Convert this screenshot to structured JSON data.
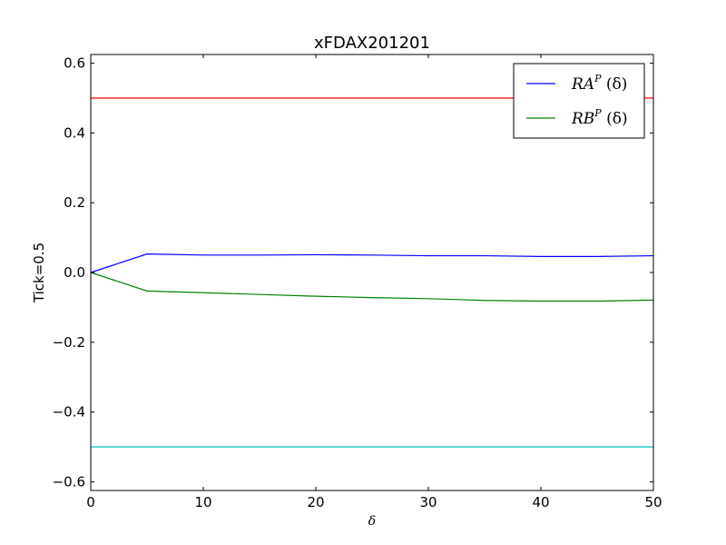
{
  "chart_data": {
    "type": "line",
    "title": "xFDAX201201",
    "xlabel": "δ",
    "ylabel": "Tick=0.5",
    "xlim": [
      0,
      50
    ],
    "ylim": [
      -0.625,
      0.625
    ],
    "xticks": [
      0,
      10,
      20,
      30,
      40,
      50
    ],
    "xtick_labels": [
      "0",
      "10",
      "20",
      "30",
      "40",
      "50"
    ],
    "yticks": [
      -0.6,
      -0.4,
      -0.2,
      0.0,
      0.2,
      0.4,
      0.6
    ],
    "ytick_labels": [
      "−0.6",
      "−0.4",
      "−0.2",
      "0.0",
      "0.2",
      "0.4",
      "0.6"
    ],
    "grid": false,
    "legend_position": "top-right",
    "x": [
      0,
      5,
      10,
      15,
      20,
      25,
      30,
      35,
      40,
      45,
      50
    ],
    "series": [
      {
        "name": "RA^P (δ)",
        "legend_main": "RA",
        "legend_sup": "P",
        "legend_tail": " (δ)",
        "color": "#0000ff",
        "values": [
          0.0,
          0.053,
          0.05,
          0.05,
          0.051,
          0.05,
          0.048,
          0.048,
          0.046,
          0.046,
          0.048
        ]
      },
      {
        "name": "RB^P (δ)",
        "legend_main": "RB",
        "legend_sup": "P",
        "legend_tail": " (δ)",
        "color": "#008000",
        "values": [
          0.0,
          -0.053,
          -0.058,
          -0.063,
          -0.068,
          -0.072,
          -0.075,
          -0.08,
          -0.082,
          -0.082,
          -0.079
        ]
      }
    ],
    "hlines": [
      {
        "y": 0.5,
        "color": "#ff0000"
      },
      {
        "y": -0.5,
        "color": "#00bfbf"
      }
    ]
  }
}
